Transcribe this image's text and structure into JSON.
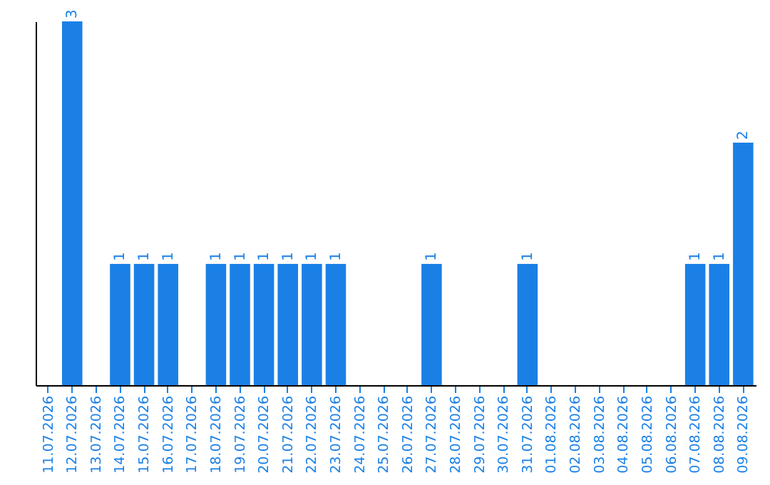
{
  "chart_data": {
    "type": "bar",
    "categories": [
      "11.07.2026",
      "12.07.2026",
      "13.07.2026",
      "14.07.2026",
      "15.07.2026",
      "16.07.2026",
      "17.07.2026",
      "18.07.2026",
      "19.07.2026",
      "20.07.2026",
      "21.07.2026",
      "22.07.2026",
      "23.07.2026",
      "24.07.2026",
      "25.07.2026",
      "26.07.2026",
      "27.07.2026",
      "28.07.2026",
      "29.07.2026",
      "30.07.2026",
      "31.07.2026",
      "01.08.2026",
      "02.08.2026",
      "03.08.2026",
      "04.08.2026",
      "05.08.2026",
      "06.08.2026",
      "07.08.2026",
      "08.08.2026",
      "09.08.2026"
    ],
    "values": [
      0,
      3,
      0,
      1,
      1,
      1,
      0,
      1,
      1,
      1,
      1,
      1,
      1,
      0,
      0,
      0,
      1,
      0,
      0,
      0,
      1,
      0,
      0,
      0,
      0,
      0,
      0,
      1,
      1,
      2
    ],
    "value_labels": [
      null,
      "3",
      null,
      "1",
      "1",
      "1",
      null,
      "1",
      "1",
      "1",
      "1",
      "1",
      "1",
      null,
      null,
      null,
      "1",
      null,
      null,
      null,
      "1",
      null,
      null,
      null,
      null,
      null,
      null,
      "1",
      "1",
      "2"
    ],
    "color": "#1a80e6",
    "tick_labels": "x"
  }
}
